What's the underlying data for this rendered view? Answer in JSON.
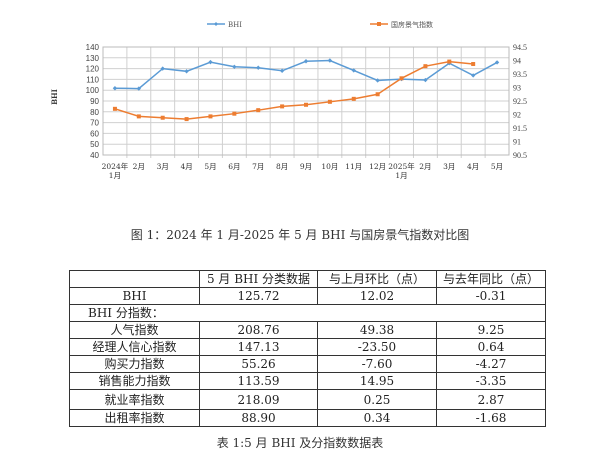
{
  "chart_data": {
    "type": "line",
    "categories": [
      "2024年\n1月",
      "2月",
      "3月",
      "4月",
      "5月",
      "6月",
      "7月",
      "8月",
      "9月",
      "10月",
      "11月",
      "12月",
      "2025年\n1月",
      "2月",
      "3月",
      "4月",
      "5月"
    ],
    "ylabel": "BHI",
    "ylim": [
      40,
      140
    ],
    "y_ticks": [
      40,
      50,
      60,
      70,
      80,
      90,
      100,
      110,
      120,
      130,
      140
    ],
    "y2lim": [
      90.5,
      94.5
    ],
    "y2_ticks": [
      "90.5",
      "91",
      "91.5",
      "92",
      "92.5",
      "93",
      "93.5",
      "94",
      "94.5"
    ],
    "grid": true,
    "legend": "top",
    "series": [
      {
        "name": "BHI",
        "axis": "left",
        "color": "#5b9bd5",
        "marker": "diamond",
        "values": [
          101.8,
          101.5,
          120.0,
          117.5,
          126.0,
          121.7,
          120.8,
          118.0,
          126.8,
          127.5,
          118.3,
          109.0,
          110.3,
          109.4,
          125.0,
          113.7,
          125.72
        ]
      },
      {
        "name": "国房景气指数",
        "axis": "right",
        "color": "#ed7d31",
        "marker": "square",
        "values": [
          92.21,
          91.93,
          91.88,
          91.83,
          91.93,
          92.03,
          92.16,
          92.3,
          92.36,
          92.47,
          92.58,
          92.75,
          93.34,
          93.79,
          93.96,
          93.87,
          null
        ]
      }
    ]
  },
  "figure_caption": "图 1：2024 年 1 月-2025 年 5 月 BHI 与国房景气指数对比图",
  "table": {
    "headers": [
      "",
      "5 月 BHI 分类数据",
      "与上月环比（点）",
      "与去年同比（点）"
    ],
    "bhi_row": [
      "BHI",
      "125.72",
      "12.02",
      "-0.31"
    ],
    "sub_label": "BHI 分指数：",
    "rows": [
      [
        "人气指数",
        "208.76",
        "49.38",
        "9.25"
      ],
      [
        "经理人信心指数",
        "147.13",
        "-23.50",
        "0.64"
      ],
      [
        "购买力指数",
        "55.26",
        "-7.60",
        "-4.27"
      ],
      [
        "销售能力指数",
        "113.59",
        "14.95",
        "-3.35"
      ],
      [
        "就业率指数",
        "218.09",
        "0.25",
        "2.87"
      ],
      [
        "出租率指数",
        "88.90",
        "0.34",
        "-1.68"
      ]
    ]
  },
  "table_caption": "表 1:5 月 BHI 及分指数数据表"
}
